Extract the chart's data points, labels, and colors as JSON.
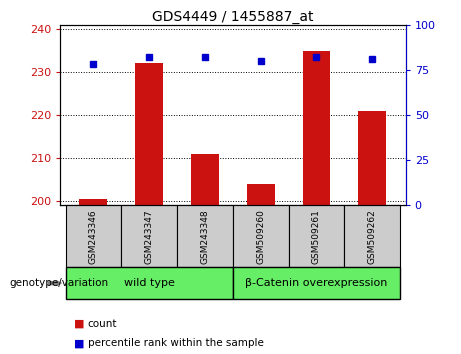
{
  "title": "GDS4449 / 1455887_at",
  "categories": [
    "GSM243346",
    "GSM243347",
    "GSM243348",
    "GSM509260",
    "GSM509261",
    "GSM509262"
  ],
  "count_values": [
    200.5,
    232.0,
    211.0,
    204.0,
    235.0,
    221.0
  ],
  "percentile_values": [
    78,
    82,
    82,
    80,
    82,
    81
  ],
  "ylim_left": [
    199,
    241
  ],
  "ylim_right": [
    0,
    100
  ],
  "yticks_left": [
    200,
    210,
    220,
    230,
    240
  ],
  "yticks_right": [
    0,
    25,
    50,
    75,
    100
  ],
  "bar_color": "#cc1111",
  "dot_color": "#0000cc",
  "bar_width": 0.5,
  "grid_color": "black",
  "groups": [
    {
      "label": "wild type",
      "span": [
        0,
        2
      ]
    },
    {
      "label": "β-Catenin overexpression",
      "span": [
        3,
        5
      ]
    }
  ],
  "group_color": "#66ee66",
  "genotype_label": "genotype/variation",
  "legend_count_label": "count",
  "legend_percentile_label": "percentile rank within the sample",
  "tick_label_color_left": "#cc1111",
  "tick_label_color_right": "#0000cc",
  "bg_color_plot": "#ffffff",
  "bg_color_xticklabels": "#cccccc",
  "title_fontsize": 10,
  "axis_fontsize": 8,
  "tick_fontsize": 8
}
